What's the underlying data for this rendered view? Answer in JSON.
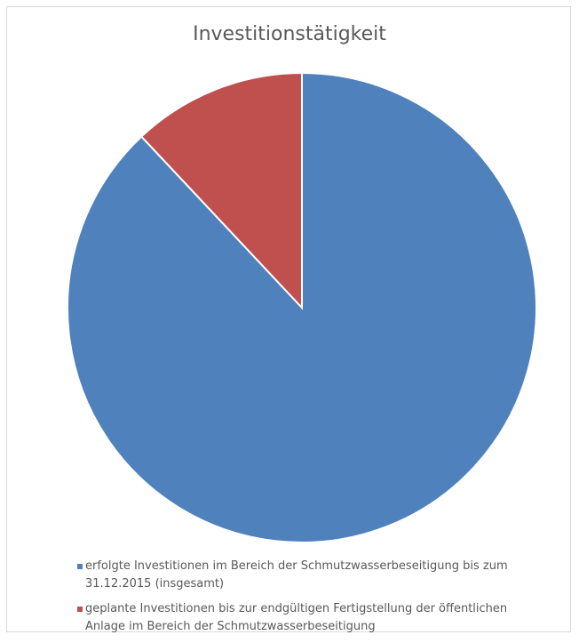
{
  "chart_data": {
    "type": "pie",
    "title": "Investitionstätigkeit",
    "slices": [
      {
        "label": "erfolgte Investitionen im Bereich der Schmutzwasserbeseitigung bis zum 31.12.2015 (insgesamt)",
        "value": 0.88,
        "color": "#4f81bd"
      },
      {
        "label": "geplante Investitionen bis zur endgültigen Fertigstellung der öffentlichen Anlage im Bereich der Schmutzwasserbeseitigung",
        "value": 0.12,
        "color": "#c0504d"
      }
    ],
    "legend_position": "bottom"
  }
}
